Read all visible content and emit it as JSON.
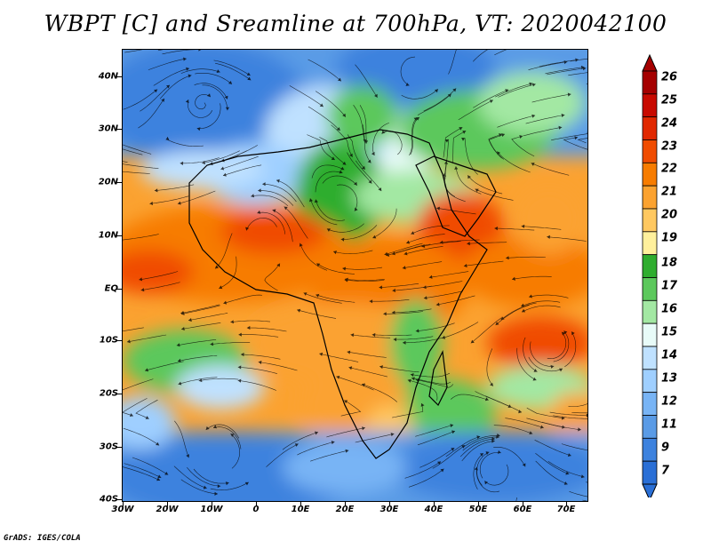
{
  "title": "WBPT [C] and Sreamline at 700hPa, VT: 2020042100",
  "credit": "GrADS: IGES/COLA",
  "map": {
    "lat_labels": [
      "40N",
      "30N",
      "20N",
      "10N",
      "EQ",
      "10S",
      "20S",
      "30S",
      "40S"
    ],
    "lon_labels": [
      "30W",
      "20W",
      "10W",
      "0",
      "10E",
      "20E",
      "30E",
      "40E",
      "50E",
      "60E",
      "70E"
    ],
    "lat_range": [
      -40,
      45
    ],
    "lon_range": [
      -30,
      75
    ]
  },
  "colorbar": {
    "labels": [
      "26",
      "25",
      "24",
      "23",
      "22",
      "21",
      "20",
      "19",
      "18",
      "17",
      "16",
      "15",
      "14",
      "13",
      "12",
      "11",
      "9",
      "7"
    ],
    "colors": [
      "#a50000",
      "#c80a00",
      "#e12800",
      "#f04c00",
      "#f77c00",
      "#fba230",
      "#ffc860",
      "#fff09c",
      "#2fad2f",
      "#5cc85c",
      "#a3e8a3",
      "#e8fbf8",
      "#bfe1ff",
      "#9fcfff",
      "#78b4f5",
      "#5a9be6",
      "#3d82de",
      "#2a6fd6"
    ],
    "top_arrow_color": "#a50000",
    "bottom_arrow_color": "#2a6fd6"
  }
}
